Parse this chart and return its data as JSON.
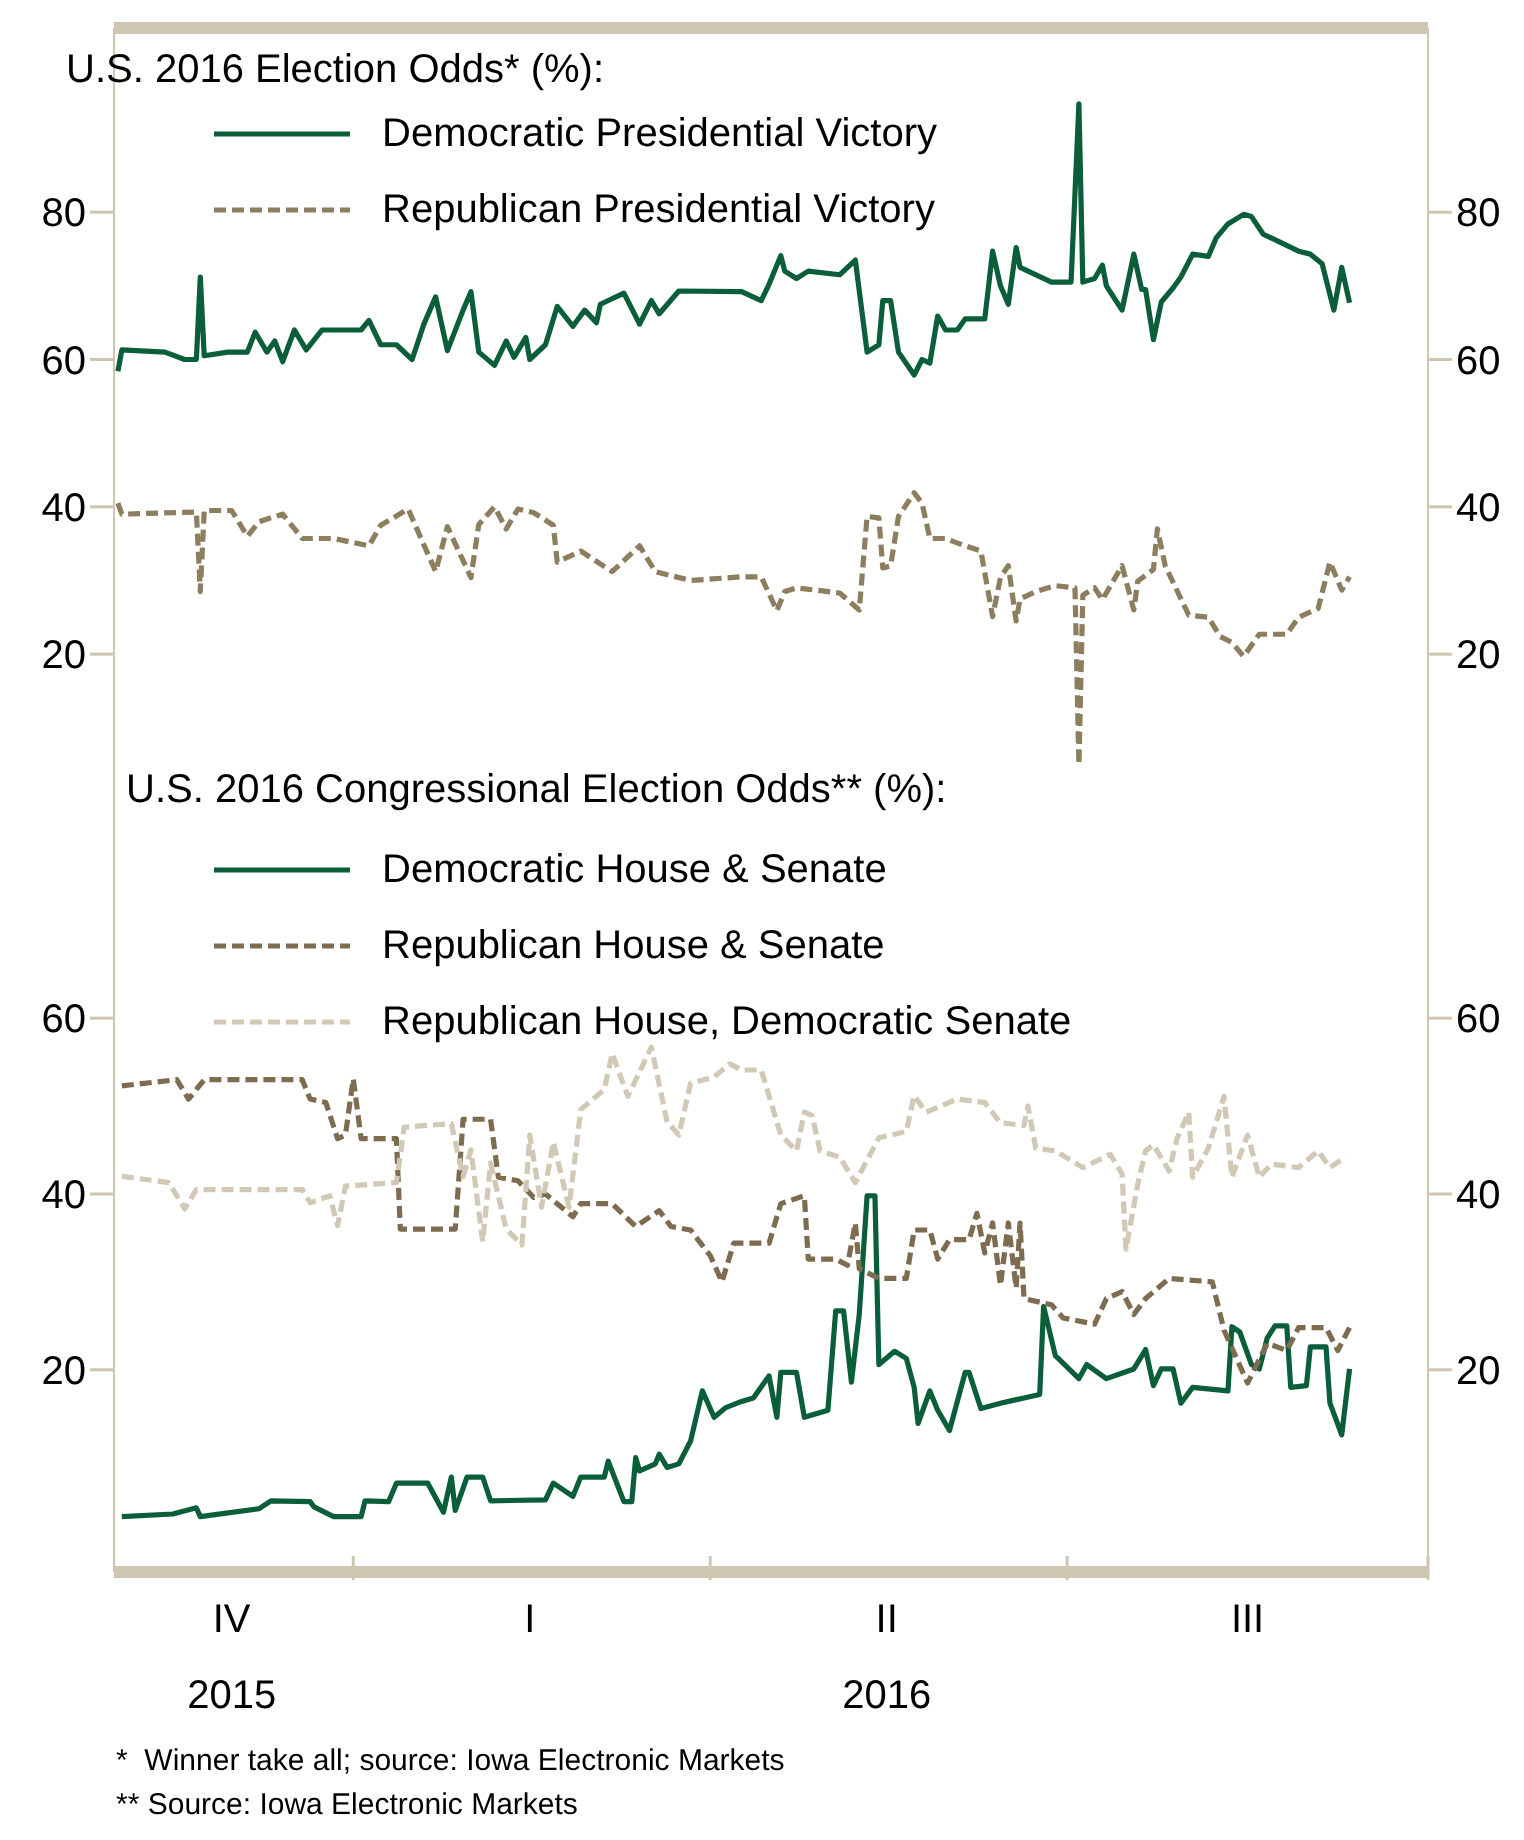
{
  "chart_data": [
    {
      "type": "line",
      "title": "U.S. 2016 Election Odds* (%):",
      "xlim": [
        "2015-11-01",
        "2016-10-01"
      ],
      "ylim": [
        4,
        105
      ],
      "yticks": [
        20,
        40,
        60,
        80
      ],
      "y2lim": [
        4,
        105
      ],
      "y2ticks": [
        20,
        40,
        60,
        80
      ],
      "tick_labels": "y",
      "legend": "top left",
      "annotations": [
        "*  Winner take all; source: Iowa Electronic Markets"
      ],
      "series": [
        {
          "name": "Democratic Presidential Victory",
          "color": "#0b5e3a",
          "line_style": "solid",
          "x": [
            "2015-11-02",
            "2015-11-03",
            "2015-11-14",
            "2015-11-19",
            "2015-11-22",
            "2015-11-23",
            "2015-11-24",
            "2015-11-30",
            "2015-12-05",
            "2015-12-07",
            "2015-12-10",
            "2015-12-12",
            "2015-12-14",
            "2015-12-17",
            "2015-12-20",
            "2015-12-24",
            "2016-01-03",
            "2016-01-05",
            "2016-01-08",
            "2016-01-12",
            "2016-01-16",
            "2016-01-19",
            "2016-01-22",
            "2016-01-25",
            "2016-01-29",
            "2016-01-31",
            "2016-02-02",
            "2016-02-06",
            "2016-02-09",
            "2016-02-11",
            "2016-02-14",
            "2016-02-15",
            "2016-02-19",
            "2016-02-22",
            "2016-02-26",
            "2016-02-29",
            "2016-03-03",
            "2016-03-04",
            "2016-03-10",
            "2016-03-14",
            "2016-03-17",
            "2016-03-19",
            "2016-03-24",
            "2016-04-09",
            "2016-04-14",
            "2016-04-16",
            "2016-04-19",
            "2016-04-20",
            "2016-04-23",
            "2016-04-26",
            "2016-05-04",
            "2016-05-08",
            "2016-05-11",
            "2016-05-14",
            "2016-05-15",
            "2016-05-17",
            "2016-05-19",
            "2016-05-23",
            "2016-05-25",
            "2016-05-27",
            "2016-05-29",
            "2016-05-31",
            "2016-06-03",
            "2016-06-05",
            "2016-06-10",
            "2016-06-12",
            "2016-06-14",
            "2016-06-16",
            "2016-06-18",
            "2016-06-19",
            "2016-06-27",
            "2016-07-02",
            "2016-07-04",
            "2016-07-05",
            "2016-07-08",
            "2016-07-10",
            "2016-07-11",
            "2016-07-15",
            "2016-07-18",
            "2016-07-20",
            "2016-07-21",
            "2016-07-23",
            "2016-07-25",
            "2016-07-28",
            "2016-07-30",
            "2016-08-02",
            "2016-08-06",
            "2016-08-08",
            "2016-08-11",
            "2016-08-15",
            "2016-08-17",
            "2016-08-20",
            "2016-08-24",
            "2016-08-29",
            "2016-09-01",
            "2016-09-04",
            "2016-09-07",
            "2016-09-09",
            "2016-09-11"
          ],
          "values": [
            58.4,
            61.3,
            61,
            60,
            60,
            71.2,
            60.5,
            61,
            61,
            63.7,
            61,
            62.5,
            59.7,
            64,
            61.3,
            64,
            64,
            65.3,
            62,
            62,
            60,
            64.8,
            68.5,
            61.2,
            66.7,
            69.2,
            61,
            59.2,
            62.5,
            60.3,
            63,
            60,
            62,
            67.2,
            64.5,
            66.7,
            65,
            67.5,
            69,
            64.8,
            68,
            66.2,
            69.3,
            69.2,
            68,
            70.2,
            74.1,
            72,
            71,
            72,
            71.5,
            73.5,
            61,
            62,
            68,
            68,
            61,
            57.9,
            60,
            59.5,
            65.9,
            64,
            64,
            65.5,
            65.5,
            74.7,
            70,
            67.5,
            75.2,
            72.5,
            70.5,
            70.5,
            94.7,
            70.5,
            71,
            72.8,
            70,
            66.7,
            74.3,
            69.5,
            69.5,
            62.7,
            67.8,
            69.7,
            71.2,
            74.3,
            74,
            76.5,
            78.4,
            79.7,
            79.4,
            77,
            76,
            74.7,
            74.3,
            73,
            66.7,
            72.5,
            67.7
          ]
        },
        {
          "name": "Republican Presidential Victory",
          "color": "#8c7e5f",
          "line_style": "dashed",
          "x": [
            "2015-11-02",
            "2015-11-03",
            "2015-11-22",
            "2015-11-23",
            "2015-11-24",
            "2015-12-01",
            "2015-12-05",
            "2015-12-08",
            "2015-12-14",
            "2015-12-19",
            "2015-12-27",
            "2016-01-05",
            "2016-01-08",
            "2016-01-15",
            "2016-01-22",
            "2016-01-25",
            "2016-01-31",
            "2016-02-02",
            "2016-02-06",
            "2016-02-09",
            "2016-02-12",
            "2016-02-16",
            "2016-02-21",
            "2016-02-22",
            "2016-02-28",
            "2016-03-07",
            "2016-03-14",
            "2016-03-18",
            "2016-03-27",
            "2016-04-09",
            "2016-04-14",
            "2016-04-18",
            "2016-04-20",
            "2016-04-23",
            "2016-05-04",
            "2016-05-09",
            "2016-05-11",
            "2016-05-14",
            "2016-05-15",
            "2016-05-17",
            "2016-05-19",
            "2016-05-23",
            "2016-05-25",
            "2016-05-27",
            "2016-05-31",
            "2016-06-05",
            "2016-06-09",
            "2016-06-12",
            "2016-06-14",
            "2016-06-16",
            "2016-06-18",
            "2016-06-19",
            "2016-06-23",
            "2016-06-28",
            "2016-07-03",
            "2016-07-04",
            "2016-07-05",
            "2016-07-08",
            "2016-07-10",
            "2016-07-15",
            "2016-07-18",
            "2016-07-19",
            "2016-07-23",
            "2016-07-24",
            "2016-07-26",
            "2016-08-01",
            "2016-08-06",
            "2016-08-09",
            "2016-08-12",
            "2016-08-15",
            "2016-08-19",
            "2016-08-26",
            "2016-08-29",
            "2016-09-03",
            "2016-09-06",
            "2016-09-09",
            "2016-09-11"
          ],
          "values": [
            40.5,
            39,
            39.3,
            28.5,
            39.5,
            39.5,
            36,
            38,
            39,
            35.7,
            35.7,
            34.7,
            37.5,
            39.7,
            31.2,
            37.3,
            30.4,
            37.6,
            40,
            37,
            39.7,
            39.2,
            37.5,
            32.5,
            34,
            31.2,
            34.7,
            31.2,
            30,
            30.5,
            30.5,
            25.9,
            28.5,
            29,
            28.3,
            26,
            38.7,
            38.5,
            31.7,
            32,
            38.7,
            41.9,
            40.5,
            35.7,
            35.7,
            34.7,
            34,
            25.1,
            30.4,
            32,
            24.5,
            27.5,
            28.5,
            29.3,
            29,
            5,
            28,
            29,
            27.4,
            32,
            26,
            29.9,
            31.5,
            37,
            32,
            25.3,
            25,
            22.4,
            21.6,
            19.7,
            22.7,
            22.7,
            25,
            26.2,
            32.5,
            28.7,
            30.5
          ]
        }
      ]
    },
    {
      "type": "line",
      "title": "U.S. 2016 Congressional Election Odds** (%):",
      "xlim": [
        "2015-11-01",
        "2016-10-01"
      ],
      "xticks": [
        {
          "value": "2015-12-01",
          "label": "IV\n2015"
        },
        {
          "value": "2016-01-01",
          "label": null
        },
        {
          "value": "2016-02-15",
          "label": "I"
        },
        {
          "value": "2016-04-01",
          "label": null
        },
        {
          "value": "2016-05-16",
          "label": "II\n2016"
        },
        {
          "value": "2016-07-01",
          "label": null
        },
        {
          "value": "2016-08-16",
          "label": "III"
        },
        {
          "value": "2016-10-01",
          "label": null
        }
      ],
      "ylim": [
        -3,
        88
      ],
      "yticks": [
        20,
        40,
        60
      ],
      "y2lim": [
        -3,
        88
      ],
      "y2ticks": [
        20,
        40,
        60
      ],
      "legend": "top left",
      "annotations": [
        "** Source: Iowa Electronic Markets"
      ],
      "series": [
        {
          "name": "Democratic House & Senate",
          "color": "#0b5e3a",
          "line_style": "solid",
          "x": [
            "2015-11-03",
            "2015-11-16",
            "2015-11-22",
            "2015-11-23",
            "2015-12-08",
            "2015-12-11",
            "2015-12-21",
            "2015-12-22",
            "2015-12-27",
            "2016-01-03",
            "2016-01-04",
            "2016-01-10",
            "2016-01-12",
            "2016-01-20",
            "2016-01-24",
            "2016-01-26",
            "2016-01-27",
            "2016-01-30",
            "2016-02-03",
            "2016-02-05",
            "2016-02-19",
            "2016-02-21",
            "2016-02-26",
            "2016-02-28",
            "2016-03-05",
            "2016-03-06",
            "2016-03-10",
            "2016-03-12",
            "2016-03-13",
            "2016-03-14",
            "2016-03-18",
            "2016-03-19",
            "2016-03-21",
            "2016-03-24",
            "2016-03-27",
            "2016-03-30",
            "2016-04-02",
            "2016-04-05",
            "2016-04-09",
            "2016-04-12",
            "2016-04-16",
            "2016-04-18",
            "2016-04-19",
            "2016-04-23",
            "2016-04-25",
            "2016-05-01",
            "2016-05-03",
            "2016-05-05",
            "2016-05-07",
            "2016-05-09",
            "2016-05-11",
            "2016-05-13",
            "2016-05-14",
            "2016-05-18",
            "2016-05-21",
            "2016-05-23",
            "2016-05-24",
            "2016-05-27",
            "2016-05-29",
            "2016-06-01",
            "2016-06-05",
            "2016-06-06",
            "2016-06-09",
            "2016-06-14",
            "2016-06-20",
            "2016-06-24",
            "2016-06-25",
            "2016-06-28",
            "2016-07-04",
            "2016-07-06",
            "2016-07-11",
            "2016-07-18",
            "2016-07-21",
            "2016-07-23",
            "2016-07-25",
            "2016-07-28",
            "2016-07-30",
            "2016-08-02",
            "2016-08-11",
            "2016-08-12",
            "2016-08-14",
            "2016-08-17",
            "2016-08-19",
            "2016-08-21",
            "2016-08-23",
            "2016-08-26",
            "2016-08-27",
            "2016-08-31",
            "2016-09-01",
            "2016-09-05",
            "2016-09-06",
            "2016-09-09",
            "2016-09-11"
          ],
          "values": [
            3.3,
            3.6,
            4.3,
            3.3,
            4.2,
            5.1,
            5,
            4.4,
            3.3,
            3.3,
            5.1,
            5,
            7.1,
            7.1,
            3.8,
            7.8,
            4,
            7.8,
            7.8,
            5.1,
            5.2,
            7.1,
            5.6,
            7.8,
            7.8,
            9.6,
            5,
            5,
            10,
            8.5,
            9.3,
            10.4,
            8.9,
            9.3,
            11.9,
            17.6,
            14.6,
            15.7,
            16.4,
            16.8,
            19.3,
            14.6,
            19.7,
            19.7,
            14.6,
            15.4,
            26.7,
            26.7,
            18.6,
            26.3,
            39.8,
            39.8,
            20.6,
            22.1,
            21.3,
            18,
            13.9,
            17.6,
            15.4,
            13.1,
            19.7,
            19.7,
            15.6,
            16.2,
            16.8,
            17.2,
            27.2,
            21.6,
            19,
            20.6,
            19,
            20.1,
            22.3,
            18.2,
            20.1,
            20.1,
            16.2,
            18,
            17.6,
            24.9,
            24.3,
            20.6,
            20.1,
            23.6,
            25,
            25,
            18,
            18.2,
            22.6,
            22.6,
            16.2,
            12.6,
            20.1
          ]
        },
        {
          "name": "Republican House & Senate",
          "color": "#7d6c50",
          "line_style": "dashed",
          "x": [
            "2015-11-03",
            "2015-11-17",
            "2015-11-20",
            "2015-11-24",
            "2015-12-19",
            "2015-12-21",
            "2015-12-25",
            "2015-12-28",
            "2015-12-30",
            "2016-01-01",
            "2016-01-03",
            "2016-01-12",
            "2016-01-13",
            "2016-01-27",
            "2016-01-29",
            "2016-02-05",
            "2016-02-07",
            "2016-02-12",
            "2016-02-16",
            "2016-02-19",
            "2016-02-26",
            "2016-02-28",
            "2016-03-07",
            "2016-03-13",
            "2016-03-19",
            "2016-03-22",
            "2016-03-27",
            "2016-04-01",
            "2016-04-04",
            "2016-04-07",
            "2016-04-16",
            "2016-04-19",
            "2016-04-25",
            "2016-04-26",
            "2016-05-03",
            "2016-05-06",
            "2016-05-08",
            "2016-05-09",
            "2016-05-14",
            "2016-05-21",
            "2016-05-23",
            "2016-05-27",
            "2016-05-29",
            "2016-06-01",
            "2016-06-06",
            "2016-06-08",
            "2016-06-10",
            "2016-06-12",
            "2016-06-14",
            "2016-06-16",
            "2016-06-18",
            "2016-06-19",
            "2016-06-20",
            "2016-06-27",
            "2016-06-30",
            "2016-07-08",
            "2016-07-11",
            "2016-07-15",
            "2016-07-18",
            "2016-07-21",
            "2016-07-27",
            "2016-08-07",
            "2016-08-10",
            "2016-08-16",
            "2016-08-21",
            "2016-08-26",
            "2016-08-29",
            "2016-09-05",
            "2016-09-08",
            "2016-09-11"
          ],
          "values": [
            52.3,
            53,
            50.8,
            53,
            53,
            50.8,
            50.4,
            46.3,
            46.7,
            53.1,
            46.3,
            46.3,
            36,
            36,
            48.5,
            48.5,
            41.9,
            41.5,
            39.6,
            40,
            37.4,
            38.9,
            38.9,
            36.3,
            38.1,
            36.3,
            35.9,
            33,
            30,
            34.4,
            34.4,
            38.9,
            39.8,
            32.6,
            32.6,
            31.9,
            36.7,
            31.5,
            30.4,
            30.4,
            35.9,
            35.9,
            32.6,
            34.8,
            34.8,
            37.8,
            33.3,
            36.7,
            29.6,
            36.7,
            29.3,
            36.7,
            28.1,
            27.4,
            25.9,
            25.2,
            28.1,
            28.9,
            26.3,
            28.1,
            30.4,
            30,
            24.5,
            18.5,
            23,
            22.2,
            24.8,
            24.8,
            22.2,
            24.8
          ]
        },
        {
          "name": "Republican House, Democratic Senate",
          "color": "#d1c9b5",
          "line_style": "dashed",
          "x": [
            "2015-11-03",
            "2015-11-15",
            "2015-11-19",
            "2015-11-22",
            "2015-12-19",
            "2015-12-21",
            "2015-12-26",
            "2015-12-28",
            "2015-12-30",
            "2016-01-12",
            "2016-01-14",
            "2016-01-26",
            "2016-01-29",
            "2016-01-31",
            "2016-02-03",
            "2016-02-05",
            "2016-02-09",
            "2016-02-13",
            "2016-02-15",
            "2016-02-18",
            "2016-02-21",
            "2016-02-25",
            "2016-02-28",
            "2016-03-05",
            "2016-03-07",
            "2016-03-11",
            "2016-03-17",
            "2016-03-21",
            "2016-03-24",
            "2016-03-27",
            "2016-04-02",
            "2016-04-06",
            "2016-04-09",
            "2016-04-14",
            "2016-04-18",
            "2016-04-19",
            "2016-04-23",
            "2016-04-25",
            "2016-04-27",
            "2016-04-29",
            "2016-05-04",
            "2016-05-08",
            "2016-05-14",
            "2016-05-21",
            "2016-05-23",
            "2016-05-26",
            "2016-06-03",
            "2016-06-10",
            "2016-06-14",
            "2016-06-20",
            "2016-06-21",
            "2016-06-23",
            "2016-06-28",
            "2016-07-05",
            "2016-07-12",
            "2016-07-15",
            "2016-07-16",
            "2016-07-19",
            "2016-07-21",
            "2016-07-23",
            "2016-07-27",
            "2016-07-29",
            "2016-08-01",
            "2016-08-02",
            "2016-08-06",
            "2016-08-10",
            "2016-08-12",
            "2016-08-16",
            "2016-08-19",
            "2016-08-22",
            "2016-08-29",
            "2016-09-03",
            "2016-09-06",
            "2016-09-10"
          ],
          "values": [
            42,
            41.3,
            38.3,
            40.5,
            40.5,
            39,
            39.8,
            36.4,
            40.9,
            41.3,
            47.6,
            48,
            42,
            45,
            34.6,
            43.5,
            36,
            34.2,
            46.7,
            38.5,
            45.9,
            38.5,
            49.6,
            51.9,
            56,
            51.1,
            56.7,
            48.2,
            46.7,
            52.6,
            53.3,
            54.8,
            54.1,
            54.1,
            48.2,
            46.7,
            44.9,
            49.3,
            48.9,
            44.9,
            44.2,
            41.3,
            46.4,
            47.1,
            51.2,
            49.3,
            50.8,
            50.4,
            48.1,
            47.8,
            50,
            45.2,
            44.9,
            43,
            44.5,
            42.3,
            33.7,
            41.1,
            44.9,
            45.6,
            42.6,
            46.3,
            49.3,
            41.9,
            45.2,
            51.1,
            41.9,
            46.7,
            41.9,
            43.4,
            43,
            44.9,
            43,
            44.2
          ]
        }
      ]
    }
  ]
}
